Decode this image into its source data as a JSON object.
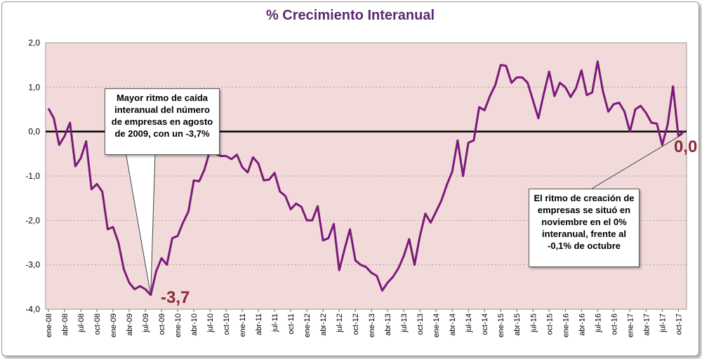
{
  "chart_data": {
    "type": "line",
    "title": "% Crecimiento Interanual",
    "xlabel": "",
    "ylabel": "",
    "ylim": [
      -4,
      2
    ],
    "yticks": [
      "2,0",
      "1,0",
      "0,0",
      "-1,0",
      "-2,0",
      "-3,0",
      "-4,0"
    ],
    "xtick_labels": [
      "ene-08",
      "abr-08",
      "jul-08",
      "oct-08",
      "ene-09",
      "abr-09",
      "jul-09",
      "oct-09",
      "ene-10",
      "abr-10",
      "jul-10",
      "oct-10",
      "ene-11",
      "abr-11",
      "jul-11",
      "oct-11",
      "ene-12",
      "abr-12",
      "jul-12",
      "oct-12",
      "ene-13",
      "abr-13",
      "jul-13",
      "oct-13",
      "ene-14",
      "abr-14",
      "jul-14",
      "oct-14",
      "ene-15",
      "abr-15",
      "jul-15",
      "oct-15",
      "ene-16",
      "abr-16",
      "jul-16",
      "oct-16",
      "ene-17",
      "abr-17",
      "jul-17",
      "oct-17"
    ],
    "line_color": "#7b1a7a",
    "plot_background": "#f2dada",
    "grid": true,
    "series": [
      {
        "values": [
          0.52,
          0.3,
          -0.3,
          -0.1,
          0.2,
          -0.78,
          -0.6,
          -0.22,
          -1.3,
          -1.18,
          -1.35,
          -2.2,
          -2.15,
          -2.5,
          -3.1,
          -3.4,
          -3.55,
          -3.48,
          -3.55,
          -3.68,
          -3.15,
          -2.85,
          -3.0,
          -2.4,
          -2.35,
          -2.05,
          -1.8,
          -1.1,
          -1.12,
          -0.85,
          -0.42,
          -0.5,
          -0.55,
          -0.55,
          -0.62,
          -0.52,
          -0.8,
          -0.92,
          -0.58,
          -0.72,
          -1.1,
          -1.08,
          -0.93,
          -1.35,
          -1.45,
          -1.75,
          -1.62,
          -1.7,
          -2.0,
          -2.0,
          -1.68,
          -2.45,
          -2.4,
          -2.08,
          -3.12,
          -2.65,
          -2.2,
          -2.9,
          -3.0,
          -3.05,
          -3.18,
          -3.25,
          -3.58,
          -3.4,
          -3.27,
          -3.08,
          -2.8,
          -2.42,
          -3.0,
          -2.35,
          -1.85,
          -2.05,
          -1.8,
          -1.55,
          -1.2,
          -0.9,
          -0.2,
          -1.0,
          -0.25,
          -0.2,
          0.55,
          0.48,
          0.8,
          1.05,
          1.5,
          1.48,
          1.1,
          1.22,
          1.22,
          1.1,
          0.7,
          0.3,
          0.85,
          1.35,
          0.8,
          1.1,
          1.0,
          0.78,
          0.98,
          1.38,
          0.82,
          0.88,
          1.58,
          0.9,
          0.45,
          0.62,
          0.65,
          0.45,
          0.0,
          0.5,
          0.58,
          0.42,
          0.2,
          0.18,
          -0.3,
          0.15,
          1.02,
          -0.1,
          0.0
        ]
      }
    ],
    "annotations": [
      {
        "value_label": "-3,7",
        "text": "Mayor ritmo de caída interanual del número de empresas en agosto de 2009, con un -3,7%"
      },
      {
        "value_label": "0,0",
        "text": "El ritmo de creación de empresas se situó en noviembre en el 0% interanual, frente al -0,1% de octubre"
      }
    ]
  }
}
